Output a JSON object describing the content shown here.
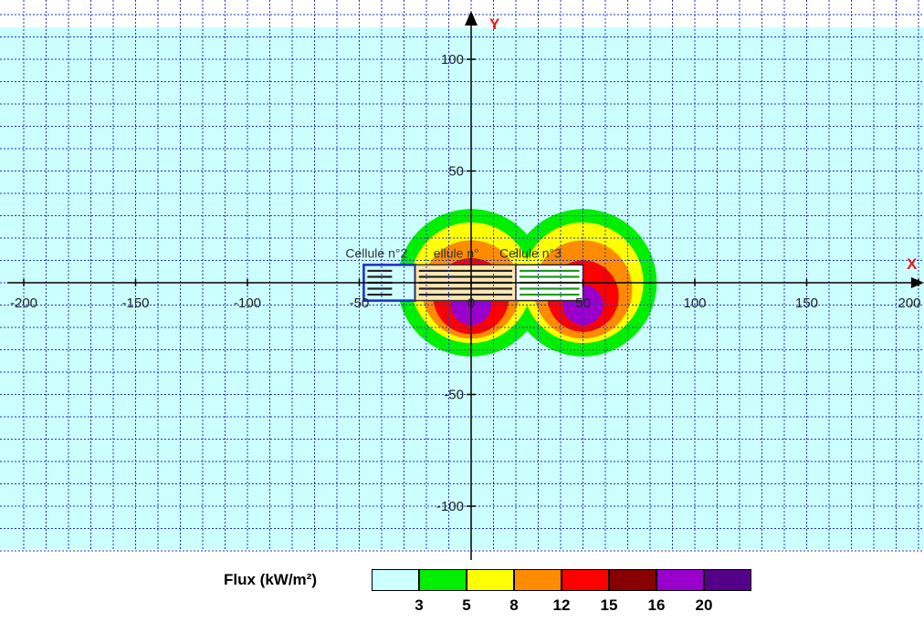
{
  "chart_data": {
    "type": "heatmap",
    "title": "",
    "x_axis": {
      "label": "X",
      "range": [
        -205,
        200
      ],
      "ticks": [
        -200,
        -150,
        -100,
        -50,
        0,
        50,
        100,
        150,
        200
      ],
      "tick_labels": [
        "-200",
        "-150",
        "-100",
        "-50",
        "0",
        "50",
        "100",
        "150",
        "200"
      ]
    },
    "y_axis": {
      "label": "Y",
      "range": [
        -120,
        120
      ],
      "ticks": [
        -100,
        -50,
        50,
        100
      ],
      "tick_labels": [
        "-100",
        "-50",
        "50",
        "100"
      ]
    },
    "grid": true,
    "legend": {
      "title": "Flux (kW/m²)",
      "position": "bottom",
      "levels": [
        {
          "color": "#ccffff",
          "label": ""
        },
        {
          "color": "#00ee00",
          "label": "3"
        },
        {
          "color": "#ffff00",
          "label": "5"
        },
        {
          "color": "#ff8c00",
          "label": "8"
        },
        {
          "color": "#ff0000",
          "label": "12"
        },
        {
          "color": "#880000",
          "label": "15"
        },
        {
          "color": "#9900cc",
          "label": "16"
        },
        {
          "color": "#550088",
          "label": "20"
        }
      ]
    },
    "cells": [
      {
        "label": "Cellule n°2",
        "x_range": [
          -48,
          -25
        ],
        "y_range": [
          -8,
          8
        ]
      },
      {
        "label": "ellule n°",
        "x_range": [
          -25,
          20
        ],
        "y_range": [
          -8,
          8
        ]
      },
      {
        "label": "Cellule n°3",
        "x_range": [
          20,
          50
        ],
        "y_range": [
          -8,
          8
        ]
      }
    ],
    "flux_zones": [
      {
        "level": 1,
        "center": [
          0,
          0
        ],
        "radius": 33
      },
      {
        "level": 1,
        "center": [
          50,
          0
        ],
        "radius": 33
      },
      {
        "level": 2,
        "center": [
          0,
          0
        ],
        "radius": 27
      },
      {
        "level": 2,
        "center": [
          50,
          0
        ],
        "radius": 27
      },
      {
        "level": 3,
        "center": [
          0,
          -3
        ],
        "radius": 22
      },
      {
        "level": 3,
        "center": [
          50,
          -3
        ],
        "radius": 22
      },
      {
        "level": 4,
        "center": [
          0,
          -6
        ],
        "radius": 17
      },
      {
        "level": 4,
        "center": [
          50,
          -6
        ],
        "radius": 16
      },
      {
        "level": 6,
        "center": [
          0,
          -10
        ],
        "radius": 9
      },
      {
        "level": 6,
        "center": [
          50,
          -10
        ],
        "radius": 9
      }
    ]
  }
}
